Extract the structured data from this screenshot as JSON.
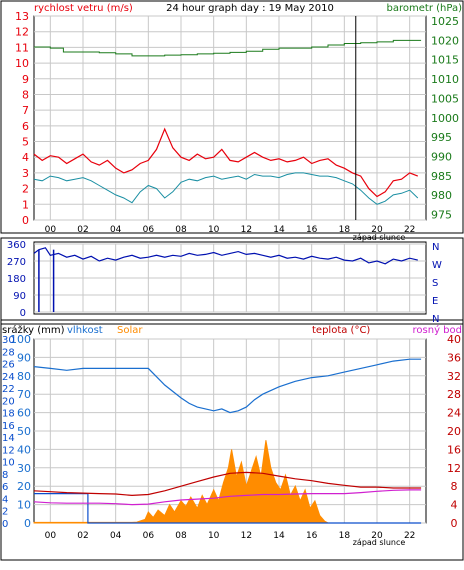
{
  "title": "24 hour graph day : 19 May 2010",
  "colors": {
    "wind": "#e8000c",
    "wind_avg": "#1a8fa3",
    "pressure": "#1a7a1a",
    "direction": "#0010b0",
    "humidity": "#1a6fcf",
    "solar": "#ff8c00",
    "temperature": "#c00000",
    "dewpoint": "#d020d0",
    "rain": "#0a4dcc",
    "grid": "#c8c8c8"
  },
  "x_ticks": [
    "00",
    "02",
    "04",
    "06",
    "08",
    "10",
    "12",
    "14",
    "16",
    "18",
    "20",
    "22"
  ],
  "sunset_label": "západ slunce",
  "chart_data": [
    {
      "type": "line",
      "name": "wind-pressure",
      "left_label": "rychlost vetru (m/s)",
      "right_label": "barometr (hPa)",
      "left_ticks": [
        "0",
        "1",
        "2",
        "3",
        "4",
        "5",
        "6",
        "7",
        "8",
        "9",
        "10",
        "11",
        "12",
        "13"
      ],
      "right_ticks": [
        "975",
        "980",
        "985",
        "990",
        "995",
        "1000",
        "1005",
        "1010",
        "1015",
        "1020",
        "1025"
      ],
      "left_range": [
        0,
        13
      ],
      "right_range": [
        973.6,
        1026.3
      ],
      "sunset_hour": 19.7,
      "series": [
        {
          "key": "wind",
          "axis": "left",
          "x": [
            0,
            0.5,
            1,
            1.5,
            2,
            2.5,
            3,
            3.5,
            4,
            4.5,
            5,
            5.5,
            6,
            6.5,
            7,
            7.5,
            8,
            8.5,
            9,
            9.5,
            10,
            10.5,
            11,
            11.5,
            12,
            12.5,
            13,
            13.5,
            14,
            14.5,
            15,
            15.5,
            16,
            16.5,
            17,
            17.5,
            18,
            18.5,
            19,
            19.5,
            20,
            20.5,
            21,
            21.5,
            22,
            22.5,
            23,
            23.5
          ],
          "values": [
            4.2,
            3.8,
            4.1,
            4.0,
            3.6,
            3.9,
            4.2,
            3.7,
            3.5,
            3.8,
            3.3,
            3.0,
            3.2,
            3.6,
            3.8,
            4.5,
            5.8,
            4.6,
            4.0,
            3.8,
            4.2,
            3.9,
            4.0,
            4.5,
            3.8,
            3.7,
            4.0,
            4.3,
            4.0,
            3.8,
            3.9,
            3.7,
            3.8,
            4.0,
            3.6,
            3.8,
            3.9,
            3.5,
            3.3,
            3.0,
            2.8,
            2.0,
            1.5,
            1.8,
            2.5,
            2.6,
            3.0,
            2.8
          ]
        },
        {
          "key": "wind_avg",
          "axis": "left",
          "x": [
            0,
            0.5,
            1,
            1.5,
            2,
            2.5,
            3,
            3.5,
            4,
            4.5,
            5,
            5.5,
            6,
            6.5,
            7,
            7.5,
            8,
            8.5,
            9,
            9.5,
            10,
            10.5,
            11,
            11.5,
            12,
            12.5,
            13,
            13.5,
            14,
            14.5,
            15,
            15.5,
            16,
            16.5,
            17,
            17.5,
            18,
            18.5,
            19,
            19.5,
            20,
            20.5,
            21,
            21.5,
            22,
            22.5,
            23,
            23.5
          ],
          "values": [
            2.6,
            2.5,
            2.8,
            2.7,
            2.5,
            2.6,
            2.7,
            2.5,
            2.2,
            1.9,
            1.6,
            1.4,
            1.1,
            1.8,
            2.2,
            2.0,
            1.4,
            1.8,
            2.4,
            2.6,
            2.5,
            2.7,
            2.8,
            2.6,
            2.7,
            2.8,
            2.6,
            2.9,
            2.8,
            2.8,
            2.7,
            2.9,
            3.0,
            3.0,
            2.9,
            2.8,
            2.8,
            2.7,
            2.5,
            2.3,
            1.9,
            1.4,
            1.0,
            1.2,
            1.6,
            1.7,
            1.9,
            1.4
          ]
        },
        {
          "key": "pressure",
          "axis": "right",
          "x": [
            0,
            1,
            1.8,
            3,
            4,
            5,
            6,
            7,
            8,
            9,
            10,
            11,
            12,
            13,
            14,
            15,
            16,
            17,
            18,
            19,
            20,
            21,
            22,
            23,
            23.7
          ],
          "values": [
            1018.3,
            1018.0,
            1017.0,
            1017.0,
            1016.8,
            1016.5,
            1016.0,
            1016.0,
            1016.2,
            1016.3,
            1016.5,
            1016.7,
            1016.9,
            1017.2,
            1017.7,
            1018.0,
            1018.0,
            1018.3,
            1018.8,
            1019.2,
            1019.4,
            1019.6,
            1020.0,
            1020.0,
            1020.0
          ]
        }
      ]
    },
    {
      "type": "line",
      "name": "wind-direction",
      "left_ticks": [
        "0",
        "90",
        "180",
        "270",
        "360"
      ],
      "right_ticks": [
        "N",
        "W",
        "S",
        "E",
        "N"
      ],
      "left_range": [
        0,
        360
      ],
      "series": [
        {
          "key": "direction",
          "x": [
            0,
            0.3,
            0.7,
            1,
            1.5,
            2,
            2.5,
            3,
            3.5,
            4,
            4.5,
            5,
            5.5,
            6,
            6.5,
            7,
            7.5,
            8,
            8.5,
            9,
            9.5,
            10,
            10.5,
            11,
            11.5,
            12,
            12.5,
            13,
            13.5,
            14,
            14.5,
            15,
            15.5,
            16,
            16.5,
            17,
            17.5,
            18,
            18.5,
            19,
            19.5,
            20,
            20.5,
            21,
            21.5,
            22,
            22.5,
            23,
            23.5
          ],
          "values": [
            310,
            330,
            340,
            300,
            310,
            290,
            300,
            280,
            295,
            270,
            285,
            275,
            290,
            300,
            285,
            290,
            300,
            290,
            300,
            295,
            310,
            300,
            305,
            315,
            300,
            310,
            320,
            305,
            310,
            300,
            290,
            300,
            285,
            290,
            280,
            295,
            285,
            280,
            290,
            275,
            270,
            285,
            260,
            270,
            255,
            280,
            270,
            285,
            275
          ]
        }
      ],
      "spikes": [
        {
          "x": 0.3,
          "to": 0
        },
        {
          "x": 1.2,
          "to": 0
        }
      ]
    },
    {
      "type": "area",
      "name": "rain-humidity-solar-temperature",
      "labels": [
        "srážky (mm)",
        "vlhkost",
        "Solar",
        "teplota (°C)",
        "rosný bod"
      ],
      "left_outer_ticks": [
        "0",
        "2",
        "4",
        "6",
        "8",
        "10",
        "12",
        "14",
        "16",
        "18",
        "20",
        "22",
        "24",
        "26",
        "28",
        "30"
      ],
      "left_inner_ticks": [
        "0",
        "10",
        "20",
        "30",
        "40",
        "50",
        "60",
        "70",
        "80",
        "90",
        "100"
      ],
      "right_ticks": [
        "0",
        "4",
        "8",
        "12",
        "16",
        "20",
        "24",
        "28",
        "32",
        "36",
        "40"
      ],
      "rain_range": [
        0,
        30
      ],
      "humidity_range": [
        0,
        100
      ],
      "temperature_range": [
        0,
        40
      ],
      "series": [
        {
          "key": "humidity",
          "x": [
            0,
            1,
            2,
            3,
            4,
            5,
            6,
            7,
            8,
            9,
            9.5,
            10,
            10.5,
            11,
            11.5,
            12,
            12.5,
            13,
            13.5,
            14,
            15,
            16,
            17,
            18,
            19,
            20,
            21,
            22,
            23,
            23.7
          ],
          "values": [
            85,
            84,
            83,
            84,
            84,
            84,
            84,
            84,
            75,
            68,
            65,
            63,
            62,
            61,
            62,
            60,
            61,
            63,
            67,
            70,
            74,
            77,
            79,
            80,
            82,
            84,
            86,
            88,
            89,
            89
          ]
        },
        {
          "key": "temperature",
          "x": [
            0,
            1,
            2,
            3,
            4,
            5,
            6,
            7,
            8,
            9,
            10,
            11,
            12,
            13,
            14,
            15,
            16,
            17,
            18,
            19,
            20,
            21,
            22,
            23,
            23.7
          ],
          "values": [
            7.0,
            6.8,
            6.6,
            6.5,
            6.4,
            6.3,
            6.0,
            6.2,
            7.0,
            8.0,
            9.0,
            10.0,
            10.8,
            11.0,
            10.8,
            10.2,
            9.6,
            9.2,
            8.6,
            8.2,
            7.8,
            7.8,
            7.6,
            7.6,
            7.6
          ]
        },
        {
          "key": "dewpoint",
          "x": [
            0,
            1,
            2,
            3,
            4,
            5,
            6,
            7,
            8,
            9,
            10,
            11,
            12,
            13,
            14,
            15,
            16,
            17,
            18,
            19,
            20,
            21,
            22,
            23,
            23.7
          ],
          "values": [
            4.6,
            4.4,
            4.3,
            4.3,
            4.3,
            4.2,
            4.0,
            4.1,
            4.6,
            5.0,
            5.2,
            5.4,
            5.8,
            6.0,
            6.2,
            6.2,
            6.3,
            6.4,
            6.4,
            6.4,
            6.6,
            6.9,
            7.1,
            7.2,
            7.2
          ]
        },
        {
          "key": "solar",
          "x": [
            0,
            6,
            6.3,
            6.8,
            7,
            7.3,
            7.6,
            8,
            8.3,
            8.6,
            9,
            9.3,
            9.6,
            10,
            10.3,
            10.6,
            11,
            11.3,
            11.6,
            11.9,
            12.1,
            12.4,
            12.7,
            13,
            13.3,
            13.6,
            13.9,
            14.2,
            14.5,
            14.8,
            15.1,
            15.4,
            15.7,
            16,
            16.3,
            16.6,
            16.9,
            17.2,
            17.5,
            17.8,
            18
          ],
          "values": [
            0.3,
            0.3,
            0.5,
            2.0,
            6.0,
            3.0,
            7.0,
            4.0,
            10.0,
            6.0,
            12.0,
            9.0,
            14.0,
            8.0,
            15.0,
            10.0,
            18.0,
            12.0,
            22.0,
            30.0,
            40.0,
            25.0,
            33.0,
            20.0,
            28.0,
            36.0,
            25.0,
            45.0,
            30.0,
            22.0,
            18.0,
            26.0,
            15.0,
            20.0,
            12.0,
            18.0,
            8.0,
            12.0,
            4.0,
            1.0,
            0.0
          ],
          "scale_max": 100
        },
        {
          "key": "rain",
          "x": [
            0,
            3.3,
            3.3,
            23.7
          ],
          "values": [
            4.8,
            4.8,
            0,
            0
          ]
        }
      ]
    }
  ]
}
